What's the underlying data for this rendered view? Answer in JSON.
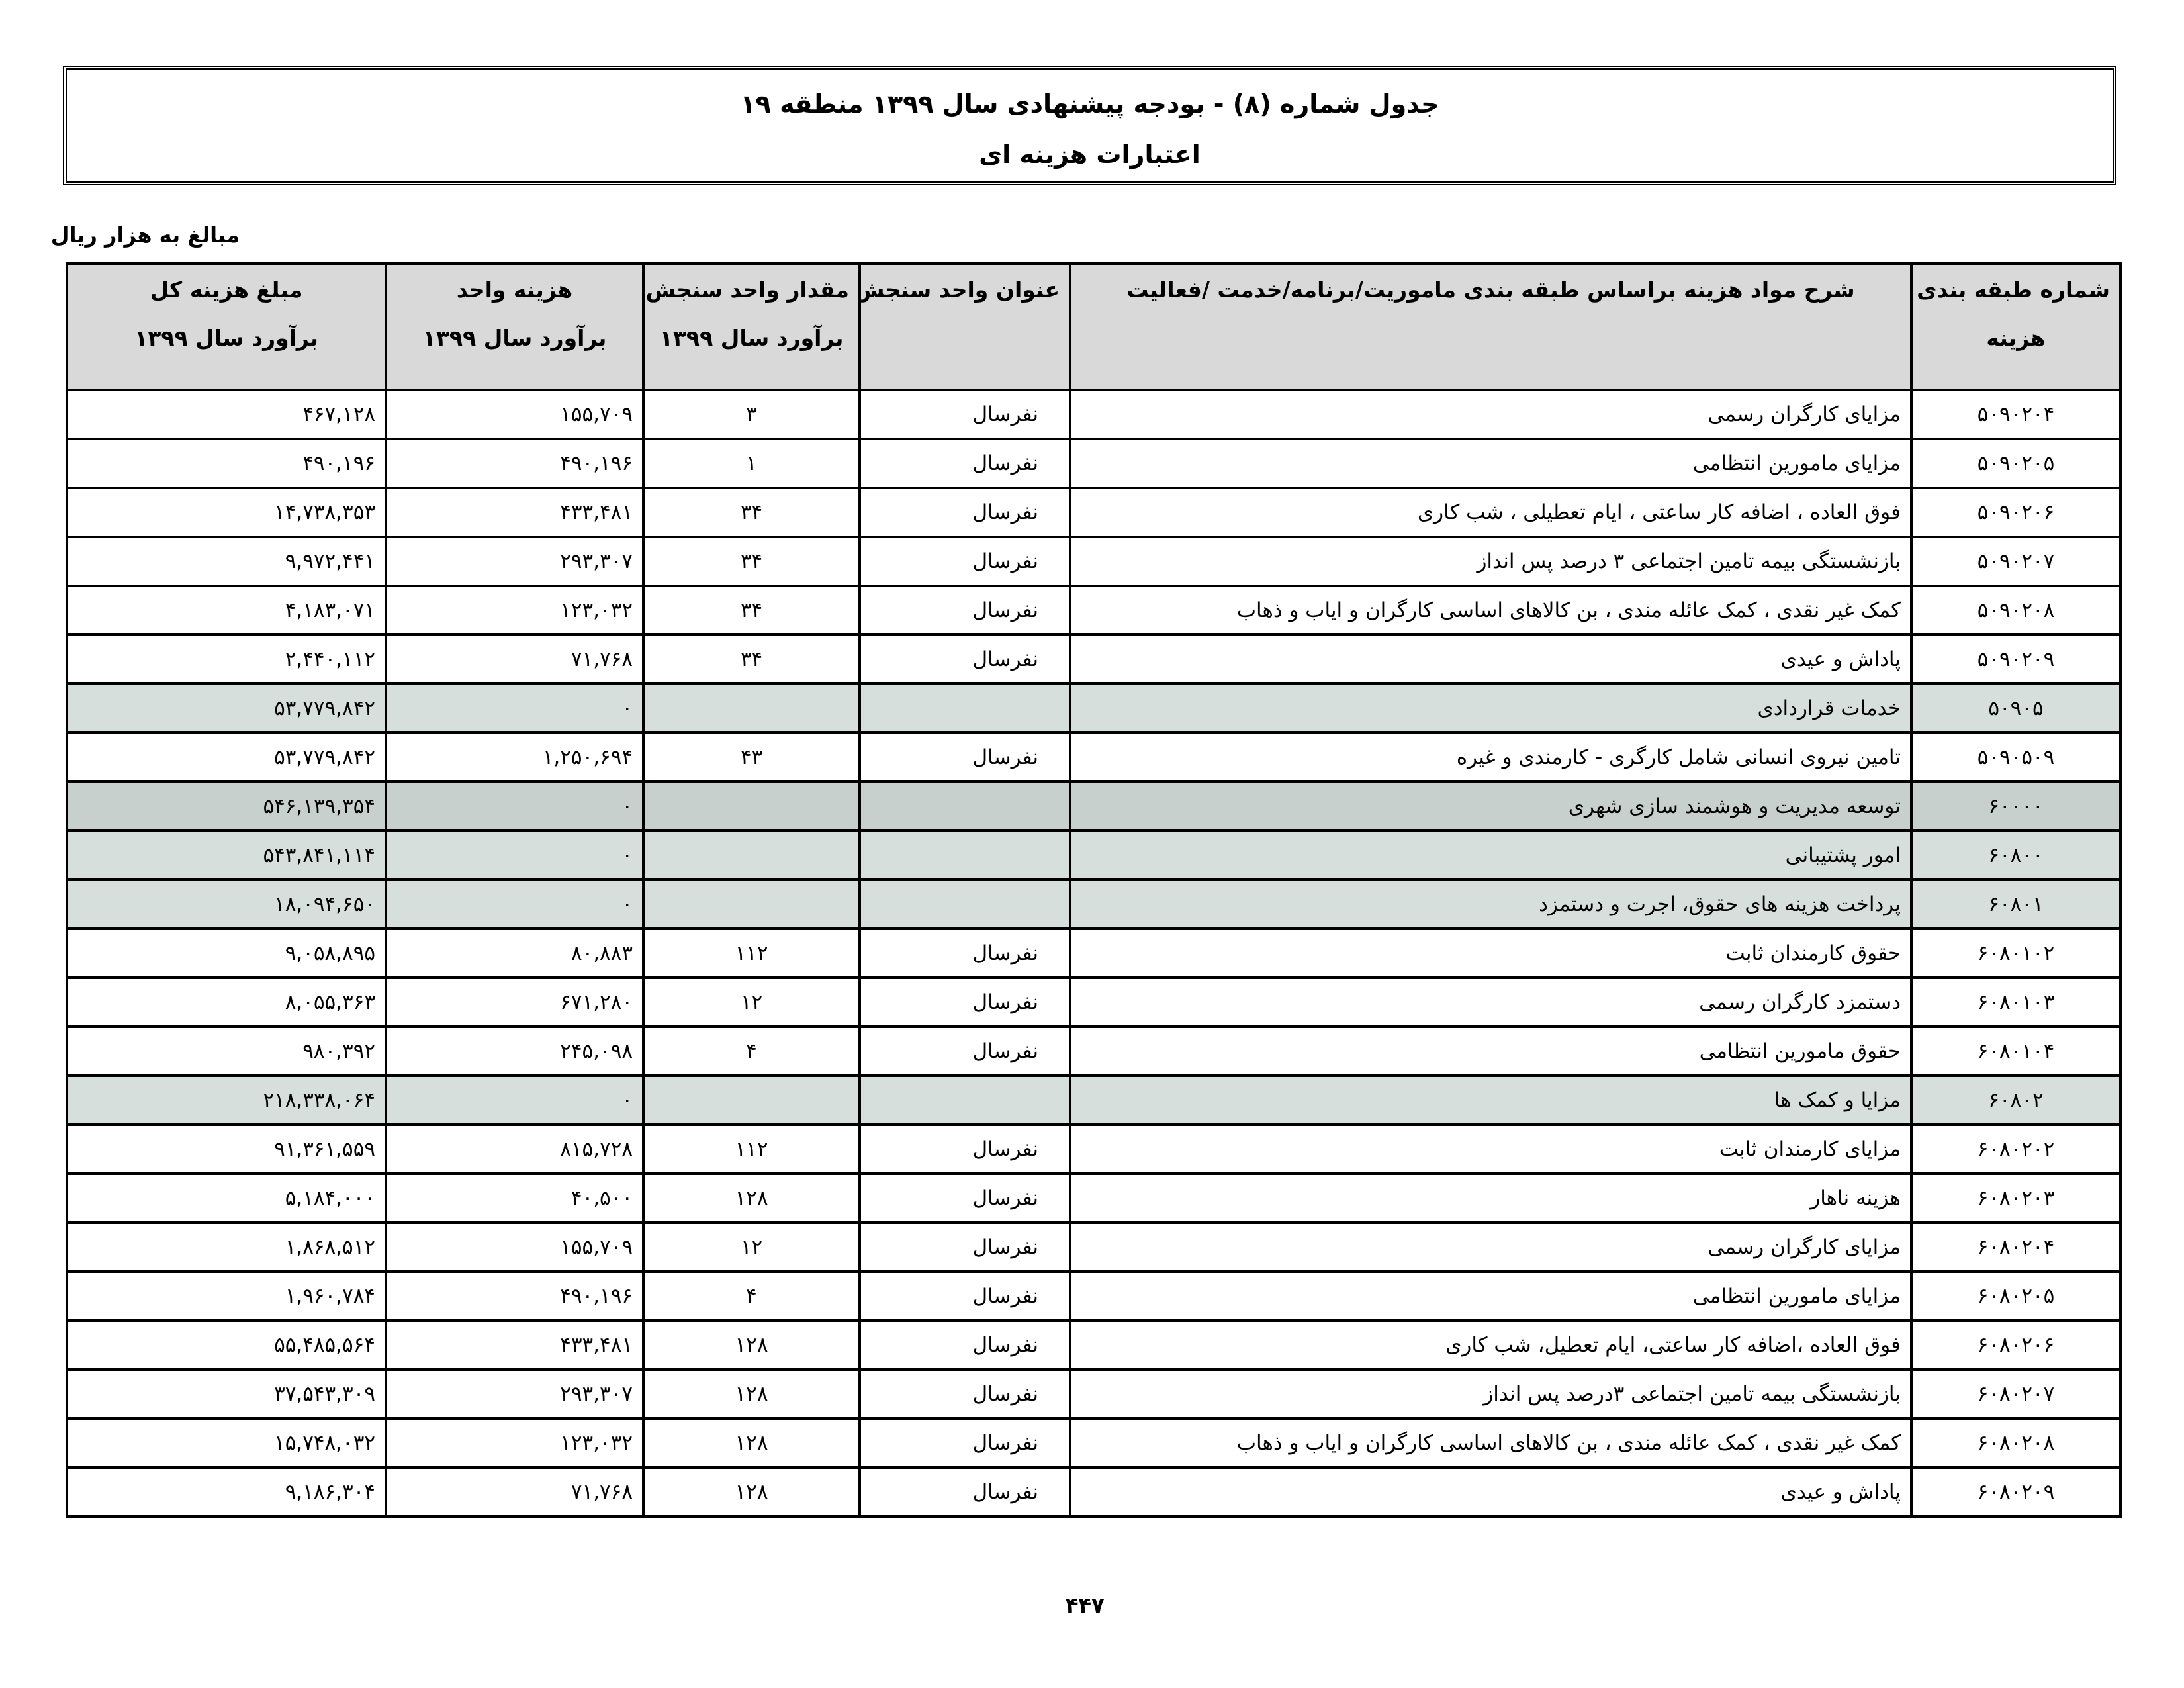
{
  "title": {
    "line1": "جدول شماره (۸) - بودجه پیشنهادی سال ۱۳۹۹ منطقه ۱۹",
    "line2": "اعتبارات هزینه ای"
  },
  "units_note": "مبالغ به هزار ریال",
  "table": {
    "headers": {
      "code": [
        "شماره طبقه بندی",
        "هزینه"
      ],
      "description": [
        "شرح مواد هزینه براساس طبقه بندی ماموریت/برنامه/خدمت /فعالیت",
        ""
      ],
      "unit_title": [
        "عنوان واحد سنجش",
        ""
      ],
      "quantity": [
        "مقدار واحد سنجش",
        "برآورد سال  ۱۳۹۹"
      ],
      "unit_cost": [
        "هزینه واحد",
        "برآورد سال  ۱۳۹۹"
      ],
      "total": [
        "مبلغ هزینه کل",
        "برآورد سال  ۱۳۹۹"
      ]
    },
    "row_colors": {
      "normal": "#ffffff",
      "subtotal": "#d6dfdc",
      "major_total": "#c7d0cd",
      "header": "#d9d9d9"
    },
    "rows": [
      {
        "code": "۵۰۹۰۲۰۴",
        "description": "مزایای کارگران رسمی",
        "unit": "نفرسال",
        "quantity": "۳",
        "unit_cost": "۱۵۵,۷۰۹",
        "total": "۴۶۷,۱۲۸",
        "type": "normal"
      },
      {
        "code": "۵۰۹۰۲۰۵",
        "description": "مزایای مامورین انتظامی",
        "unit": "نفرسال",
        "quantity": "۱",
        "unit_cost": "۴۹۰,۱۹۶",
        "total": "۴۹۰,۱۹۶",
        "type": "normal"
      },
      {
        "code": "۵۰۹۰۲۰۶",
        "description": "فوق العاده ، اضافه کار ساعتی ، ایام تعطیلی ، شب کاری",
        "unit": "نفرسال",
        "quantity": "۳۴",
        "unit_cost": "۴۳۳,۴۸۱",
        "total": "۱۴,۷۳۸,۳۵۳",
        "type": "normal"
      },
      {
        "code": "۵۰۹۰۲۰۷",
        "description": "بازنشستگی بیمه تامین اجتماعی ۳ درصد پس انداز",
        "unit": "نفرسال",
        "quantity": "۳۴",
        "unit_cost": "۲۹۳,۳۰۷",
        "total": "۹,۹۷۲,۴۴۱",
        "type": "normal"
      },
      {
        "code": "۵۰۹۰۲۰۸",
        "description": "کمک غیر نقدی ، کمک عائله مندی ، بن کالاهای اساسی کارگران و ایاب و ذهاب",
        "unit": "نفرسال",
        "quantity": "۳۴",
        "unit_cost": "۱۲۳,۰۳۲",
        "total": "۴,۱۸۳,۰۷۱",
        "type": "normal"
      },
      {
        "code": "۵۰۹۰۲۰۹",
        "description": "پاداش و عیدی",
        "unit": "نفرسال",
        "quantity": "۳۴",
        "unit_cost": "۷۱,۷۶۸",
        "total": "۲,۴۴۰,۱۱۲",
        "type": "normal"
      },
      {
        "code": "۵۰۹۰۵",
        "description": "خدمات قراردادی",
        "unit": "",
        "quantity": "",
        "unit_cost": "۰",
        "total": "۵۳,۷۷۹,۸۴۲",
        "type": "sub"
      },
      {
        "code": "۵۰۹۰۵۰۹",
        "description": "تامین نیروی انسانی شامل کارگری - کارمندی و غیره",
        "unit": "نفرسال",
        "quantity": "۴۳",
        "unit_cost": "۱,۲۵۰,۶۹۴",
        "total": "۵۳,۷۷۹,۸۴۲",
        "type": "normal"
      },
      {
        "code": "۶۰۰۰۰",
        "description": "توسعه مدیریت و هوشمند سازی شهری",
        "unit": "",
        "quantity": "",
        "unit_cost": "۰",
        "total": "۵۴۶,۱۳۹,۳۵۴",
        "type": "major"
      },
      {
        "code": "۶۰۸۰۰",
        "description": "امور پشتیبانی",
        "unit": "",
        "quantity": "",
        "unit_cost": "۰",
        "total": "۵۴۳,۸۴۱,۱۱۴",
        "type": "sub"
      },
      {
        "code": "۶۰۸۰۱",
        "description": "پرداخت هزینه های حقوق، اجرت و دستمزد",
        "unit": "",
        "quantity": "",
        "unit_cost": "۰",
        "total": "۱۸,۰۹۴,۶۵۰",
        "type": "sub"
      },
      {
        "code": "۶۰۸۰۱۰۲",
        "description": "حقوق کارمندان  ثابت",
        "unit": "نفرسال",
        "quantity": "۱۱۲",
        "unit_cost": "۸۰,۸۸۳",
        "total": "۹,۰۵۸,۸۹۵",
        "type": "normal"
      },
      {
        "code": "۶۰۸۰۱۰۳",
        "description": "دستمزد کارگران رسمی",
        "unit": "نفرسال",
        "quantity": "۱۲",
        "unit_cost": "۶۷۱,۲۸۰",
        "total": "۸,۰۵۵,۳۶۳",
        "type": "normal"
      },
      {
        "code": "۶۰۸۰۱۰۴",
        "description": "حقوق مامورین انتظامی",
        "unit": "نفرسال",
        "quantity": "۴",
        "unit_cost": "۲۴۵,۰۹۸",
        "total": "۹۸۰,۳۹۲",
        "type": "normal"
      },
      {
        "code": "۶۰۸۰۲",
        "description": "مزایا و کمک ها",
        "unit": "",
        "quantity": "",
        "unit_cost": "۰",
        "total": "۲۱۸,۳۳۸,۰۶۴",
        "type": "sub"
      },
      {
        "code": "۶۰۸۰۲۰۲",
        "description": "مزایای کارمندان ثابت",
        "unit": "نفرسال",
        "quantity": "۱۱۲",
        "unit_cost": "۸۱۵,۷۲۸",
        "total": "۹۱,۳۶۱,۵۵۹",
        "type": "normal"
      },
      {
        "code": "۶۰۸۰۲۰۳",
        "description": "هزینه ناهار",
        "unit": "نفرسال",
        "quantity": "۱۲۸",
        "unit_cost": "۴۰,۵۰۰",
        "total": "۵,۱۸۴,۰۰۰",
        "type": "normal"
      },
      {
        "code": "۶۰۸۰۲۰۴",
        "description": "مزایای کارگران رسمی",
        "unit": "نفرسال",
        "quantity": "۱۲",
        "unit_cost": "۱۵۵,۷۰۹",
        "total": "۱,۸۶۸,۵۱۲",
        "type": "normal"
      },
      {
        "code": "۶۰۸۰۲۰۵",
        "description": "مزایای مامورین انتظامی",
        "unit": "نفرسال",
        "quantity": "۴",
        "unit_cost": "۴۹۰,۱۹۶",
        "total": "۱,۹۶۰,۷۸۴",
        "type": "normal"
      },
      {
        "code": "۶۰۸۰۲۰۶",
        "description": "فوق العاده ،اضافه کار ساعتی، ایام تعطیل، شب کاری",
        "unit": "نفرسال",
        "quantity": "۱۲۸",
        "unit_cost": "۴۳۳,۴۸۱",
        "total": "۵۵,۴۸۵,۵۶۴",
        "type": "normal"
      },
      {
        "code": "۶۰۸۰۲۰۷",
        "description": "بازنشستگی بیمه تامین اجتماعی ۳درصد پس انداز",
        "unit": "نفرسال",
        "quantity": "۱۲۸",
        "unit_cost": "۲۹۳,۳۰۷",
        "total": "۳۷,۵۴۳,۳۰۹",
        "type": "normal"
      },
      {
        "code": "۶۰۸۰۲۰۸",
        "description": "کمک غیر نقدی ، کمک  عائله مندی ، بن کالاهای اساسی کارگران و ایاب و ذهاب",
        "unit": "نفرسال",
        "quantity": "۱۲۸",
        "unit_cost": "۱۲۳,۰۳۲",
        "total": "۱۵,۷۴۸,۰۳۲",
        "type": "normal"
      },
      {
        "code": "۶۰۸۰۲۰۹",
        "description": "پاداش و عیدی",
        "unit": "نفرسال",
        "quantity": "۱۲۸",
        "unit_cost": "۷۱,۷۶۸",
        "total": "۹,۱۸۶,۳۰۴",
        "type": "normal"
      }
    ]
  },
  "page_number": "۴۴۷"
}
